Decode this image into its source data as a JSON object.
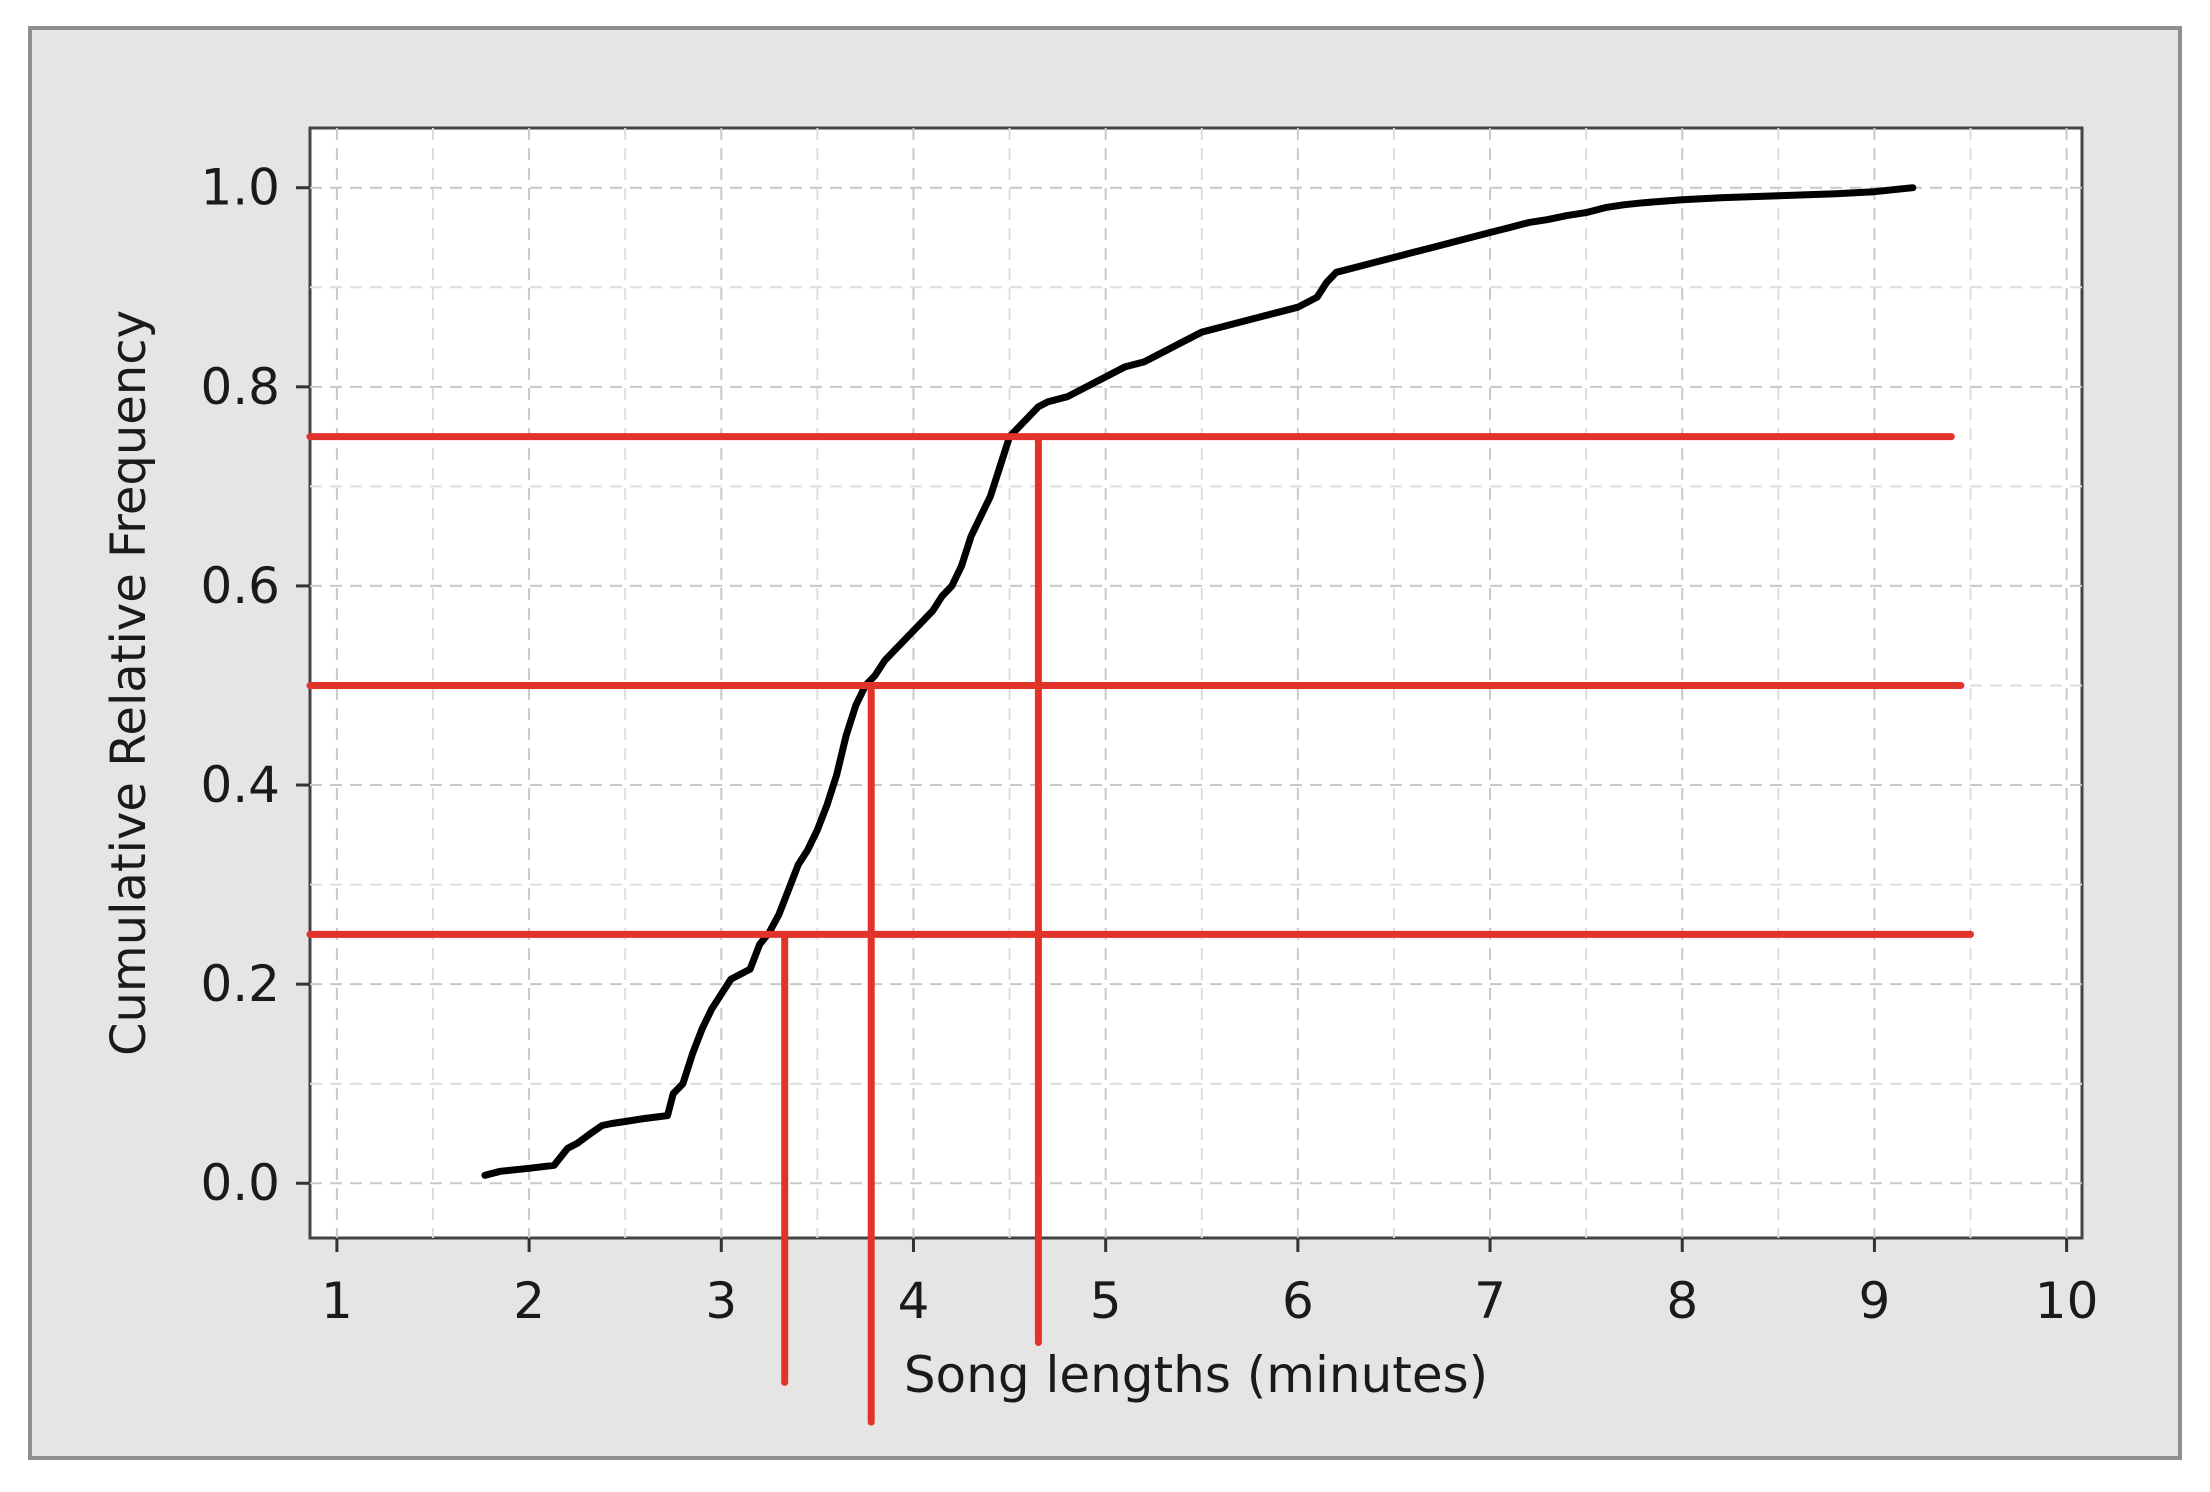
{
  "chart_data": {
    "type": "line",
    "xlabel": "Song lengths (minutes)",
    "ylabel": "Cumulative Relative Frequency",
    "xlim": [
      0.86,
      10.08
    ],
    "ylim": [
      -0.055,
      1.06
    ],
    "x_ticks": [
      1,
      2,
      3,
      4,
      5,
      6,
      7,
      8,
      9,
      10
    ],
    "y_ticks": [
      0.0,
      0.2,
      0.4,
      0.6,
      0.8,
      1.0
    ],
    "x_tick_labels": [
      "1",
      "2",
      "3",
      "4",
      "5",
      "6",
      "7",
      "8",
      "9",
      "10"
    ],
    "y_tick_labels": [
      "0.0",
      "0.2",
      "0.4",
      "0.6",
      "0.8",
      "1.0"
    ],
    "grid": true,
    "series": [
      {
        "color": "#000000",
        "x": [
          1.77,
          1.85,
          2.0,
          2.13,
          2.2,
          2.25,
          2.32,
          2.38,
          2.43,
          2.5,
          2.6,
          2.72,
          2.75,
          2.8,
          2.85,
          2.9,
          2.95,
          3.0,
          3.05,
          3.1,
          3.15,
          3.2,
          3.25,
          3.3,
          3.35,
          3.4,
          3.45,
          3.5,
          3.55,
          3.6,
          3.65,
          3.7,
          3.75,
          3.8,
          3.85,
          3.9,
          3.95,
          4.0,
          4.05,
          4.1,
          4.15,
          4.2,
          4.25,
          4.3,
          4.35,
          4.4,
          4.45,
          4.5,
          4.55,
          4.6,
          4.65,
          4.7,
          4.8,
          4.9,
          5.0,
          5.1,
          5.2,
          5.3,
          5.4,
          5.5,
          5.6,
          5.7,
          5.8,
          5.9,
          6.0,
          6.1,
          6.15,
          6.2,
          6.3,
          6.4,
          6.5,
          6.6,
          6.7,
          6.8,
          6.9,
          7.0,
          7.1,
          7.2,
          7.3,
          7.4,
          7.5,
          7.6,
          7.7,
          7.8,
          8.0,
          8.2,
          8.5,
          8.8,
          9.0,
          9.2
        ],
        "y": [
          0.008,
          0.012,
          0.015,
          0.018,
          0.035,
          0.04,
          0.05,
          0.058,
          0.06,
          0.062,
          0.065,
          0.068,
          0.09,
          0.1,
          0.13,
          0.155,
          0.175,
          0.19,
          0.205,
          0.21,
          0.215,
          0.24,
          0.252,
          0.27,
          0.295,
          0.32,
          0.335,
          0.355,
          0.38,
          0.41,
          0.45,
          0.48,
          0.5,
          0.51,
          0.525,
          0.535,
          0.545,
          0.555,
          0.565,
          0.575,
          0.59,
          0.6,
          0.62,
          0.65,
          0.67,
          0.69,
          0.72,
          0.75,
          0.76,
          0.77,
          0.78,
          0.785,
          0.79,
          0.8,
          0.81,
          0.82,
          0.825,
          0.835,
          0.845,
          0.855,
          0.86,
          0.865,
          0.87,
          0.875,
          0.88,
          0.89,
          0.905,
          0.915,
          0.92,
          0.925,
          0.93,
          0.935,
          0.94,
          0.945,
          0.95,
          0.955,
          0.96,
          0.965,
          0.968,
          0.972,
          0.975,
          0.98,
          0.983,
          0.985,
          0.988,
          0.99,
          0.992,
          0.994,
          0.996,
          1.0
        ]
      }
    ],
    "annotations": [
      {
        "type": "hline",
        "y": 0.25,
        "x_range": [
          0.86,
          9.5
        ],
        "color": "#e2332a"
      },
      {
        "type": "hline",
        "y": 0.5,
        "x_range": [
          0.86,
          9.45
        ],
        "color": "#e2332a"
      },
      {
        "type": "hline",
        "y": 0.75,
        "x_range": [
          0.86,
          9.4
        ],
        "color": "#e2332a"
      },
      {
        "type": "vline",
        "x": 3.33,
        "y_range": [
          -0.2,
          0.25
        ],
        "color": "#e2332a"
      },
      {
        "type": "vline",
        "x": 3.78,
        "y_range": [
          -0.24,
          0.5
        ],
        "color": "#e2332a"
      },
      {
        "type": "vline",
        "x": 4.65,
        "y_range": [
          -0.16,
          0.75
        ],
        "color": "#e2332a"
      }
    ]
  }
}
